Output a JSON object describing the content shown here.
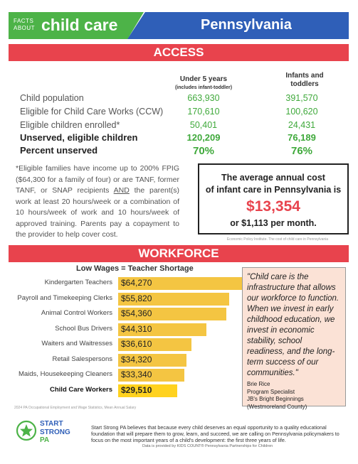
{
  "header": {
    "facts_line1": "FACTS",
    "facts_line2": "ABOUT",
    "topic": "child care",
    "state": "Pennsylvania"
  },
  "access": {
    "title": "ACCESS",
    "col1_header": "Under 5 years",
    "col1_sub": "(includes infant-toddler)",
    "col2_header_line1": "Infants and",
    "col2_header_line2": "toddlers",
    "rows": [
      {
        "label": "Child population",
        "v1": "663,930",
        "v2": "391,570"
      },
      {
        "label": "Eligible for Child Care Works (CCW)",
        "v1": "170,610",
        "v2": "100,620"
      },
      {
        "label": "Eligible children enrolled*",
        "v1": "50,401",
        "v2": "24,431"
      },
      {
        "label": "Unserved, eligible children",
        "v1": "120,209",
        "v2": "76,189"
      },
      {
        "label": "Percent unserved",
        "v1": "70%",
        "v2": "76%"
      }
    ],
    "note_part1": "*Eligible families have income up to 200% FPIG ($64,300 for a family of four) or are TANF, former TANF, or SNAP recipients ",
    "note_and": "AND",
    "note_part2": " the parent(s) work at least 20 hours/week or a combination of 10 hours/week of work and 10 hours/week of approved training. Parents pay a copayment to the provider to help cover cost.",
    "cost_line1": "The average annual cost",
    "cost_line2": "of infant care in Pennsylvania is",
    "cost_amount": "$13,354",
    "cost_monthly": "or $1,113 per month.",
    "cost_source": "Economic Policy Institute. The cost of child care in Pennsylvania"
  },
  "workforce": {
    "title": "WORKFORCE",
    "chart_title": "Low Wages = Teacher Shortage",
    "source": "2024 PA Occupational Employment and Wage Statistics, Mean Annual Salary",
    "quote": "\"Child care is the infrastructure that allows our workforce to function. When we invest in early childhood education, we invest in economic stability, school readiness, and the long-term success of our communities.\"",
    "attr_name": "Brie Rice",
    "attr_title": "Program Specialist",
    "attr_org": "JB's Bright Beginnings",
    "attr_county": "(Westmoreland County)"
  },
  "chart_data": {
    "type": "bar",
    "orientation": "horizontal",
    "title": "Low Wages = Teacher Shortage",
    "categories": [
      "Kindergarten Teachers",
      "Payroll and Timekeeping Clerks",
      "Animal Control Workers",
      "School Bus Drivers",
      "Waiters and Waitresses",
      "Retail Salespersons",
      "Maids, Housekeeping Cleaners",
      "Child Care Workers"
    ],
    "values": [
      64270,
      55820,
      54360,
      44310,
      36610,
      34320,
      33340,
      29510
    ],
    "labels": [
      "$64,270",
      "$55,820",
      "$54,360",
      "$44,310",
      "$36,610",
      "$34,320",
      "$33,340",
      "$29,510"
    ],
    "highlight": "Child Care Workers",
    "colors": {
      "bar": "#f4c542",
      "highlight": "#ffd21f"
    }
  },
  "footer": {
    "logo_line1": "START",
    "logo_line2": "STRONG",
    "logo_line3": "PA",
    "text": "Start Strong PA believes that because every child deserves an equal opportunity to a quality educational foundation that will prepare them to grow, learn, and succeed, we are calling on Pennsylvania policymakers to focus on the most important years of a child's development: the first three years of life.",
    "data_source": "Data is provided by KIDS COUNT® Pennsylvania Partnerships for Children"
  },
  "colors": {
    "green": "#4db348",
    "blue": "#2f5fb8",
    "red": "#e8434d",
    "yellow": "#f4c542",
    "quote_bg": "#fbe2d6"
  }
}
